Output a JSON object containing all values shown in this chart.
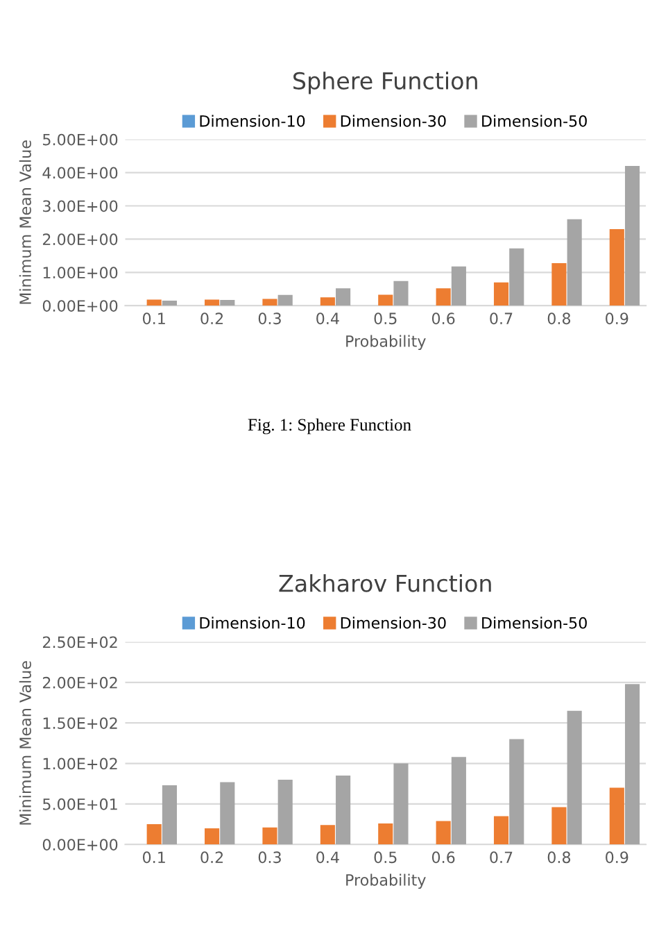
{
  "chart_data": [
    {
      "type": "bar",
      "title": "Sphere Function",
      "xlabel": "Probability",
      "ylabel": "Minimum Mean Value",
      "categories": [
        "0.1",
        "0.2",
        "0.3",
        "0.4",
        "0.5",
        "0.6",
        "0.7",
        "0.8",
        "0.9"
      ],
      "series": [
        {
          "name": "Dimension-10",
          "color": "#5b9bd5",
          "values": [
            0,
            0,
            0,
            0,
            0,
            0,
            0,
            0,
            0
          ]
        },
        {
          "name": "Dimension-30",
          "color": "#ed7d31",
          "values": [
            0.18,
            0.18,
            0.2,
            0.25,
            0.33,
            0.52,
            0.7,
            1.28,
            2.3
          ]
        },
        {
          "name": "Dimension-50",
          "color": "#a5a5a5",
          "values": [
            0.15,
            0.17,
            0.32,
            0.52,
            0.74,
            1.18,
            1.72,
            2.6,
            4.2
          ]
        }
      ],
      "ylim": [
        0,
        5
      ],
      "yticks": [
        {
          "value": 0,
          "label": "0.00E+00"
        },
        {
          "value": 1,
          "label": "1.00E+00"
        },
        {
          "value": 2,
          "label": "2.00E+00"
        },
        {
          "value": 3,
          "label": "3.00E+00"
        },
        {
          "value": 4,
          "label": "4.00E+00"
        },
        {
          "value": 5,
          "label": "5.00E+00"
        }
      ],
      "grid": "y",
      "legend": "top",
      "annotations": [
        "Fig. 1: Sphere Function"
      ]
    },
    {
      "type": "bar",
      "title": "Zakharov Function",
      "xlabel": "Probability",
      "ylabel": "Minimum Mean Value",
      "categories": [
        "0.1",
        "0.2",
        "0.3",
        "0.4",
        "0.5",
        "0.6",
        "0.7",
        "0.8",
        "0.9"
      ],
      "series": [
        {
          "name": "Dimension-10",
          "color": "#5b9bd5",
          "values": [
            0,
            0,
            0,
            0,
            0,
            0,
            0,
            0,
            0
          ]
        },
        {
          "name": "Dimension-30",
          "color": "#ed7d31",
          "values": [
            25,
            20,
            21,
            24,
            26,
            29,
            35,
            46,
            70
          ]
        },
        {
          "name": "Dimension-50",
          "color": "#a5a5a5",
          "values": [
            73,
            77,
            80,
            85,
            100,
            108,
            130,
            165,
            198
          ]
        }
      ],
      "ylim": [
        0,
        250
      ],
      "yticks": [
        {
          "value": 0,
          "label": "0.00E+00"
        },
        {
          "value": 50,
          "label": "5.00E+01"
        },
        {
          "value": 100,
          "label": "1.00E+02"
        },
        {
          "value": 150,
          "label": "1.50E+02"
        },
        {
          "value": 200,
          "label": "2.00E+02"
        },
        {
          "value": 250,
          "label": "2.50E+02"
        }
      ],
      "grid": "y",
      "legend": "top"
    }
  ]
}
